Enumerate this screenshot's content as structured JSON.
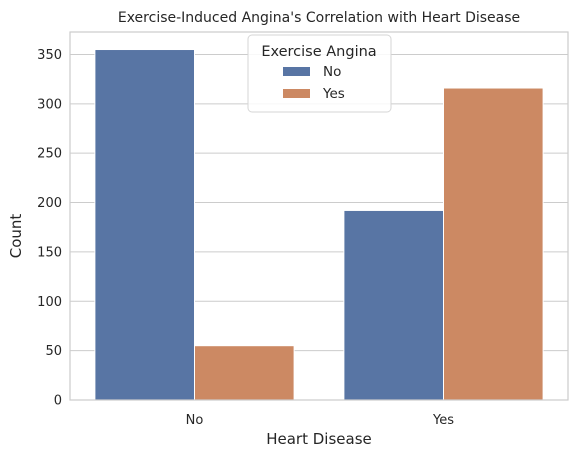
{
  "chart_data": {
    "type": "bar",
    "title": "Exercise-Induced Angina's Correlation with Heart Disease",
    "xlabel": "Heart Disease",
    "ylabel": "Count",
    "categories": [
      "No",
      "Yes"
    ],
    "series": [
      {
        "name": "No",
        "values": [
          355,
          192
        ],
        "color": "#5875a4"
      },
      {
        "name": "Yes",
        "values": [
          55,
          316
        ],
        "color": "#cc8963"
      }
    ],
    "ylim": [
      0,
      372.75
    ],
    "yticks": [
      0,
      50,
      100,
      150,
      200,
      250,
      300,
      350
    ],
    "grid": true,
    "legend": {
      "title": "Exercise Angina",
      "placement": "top-center"
    }
  }
}
